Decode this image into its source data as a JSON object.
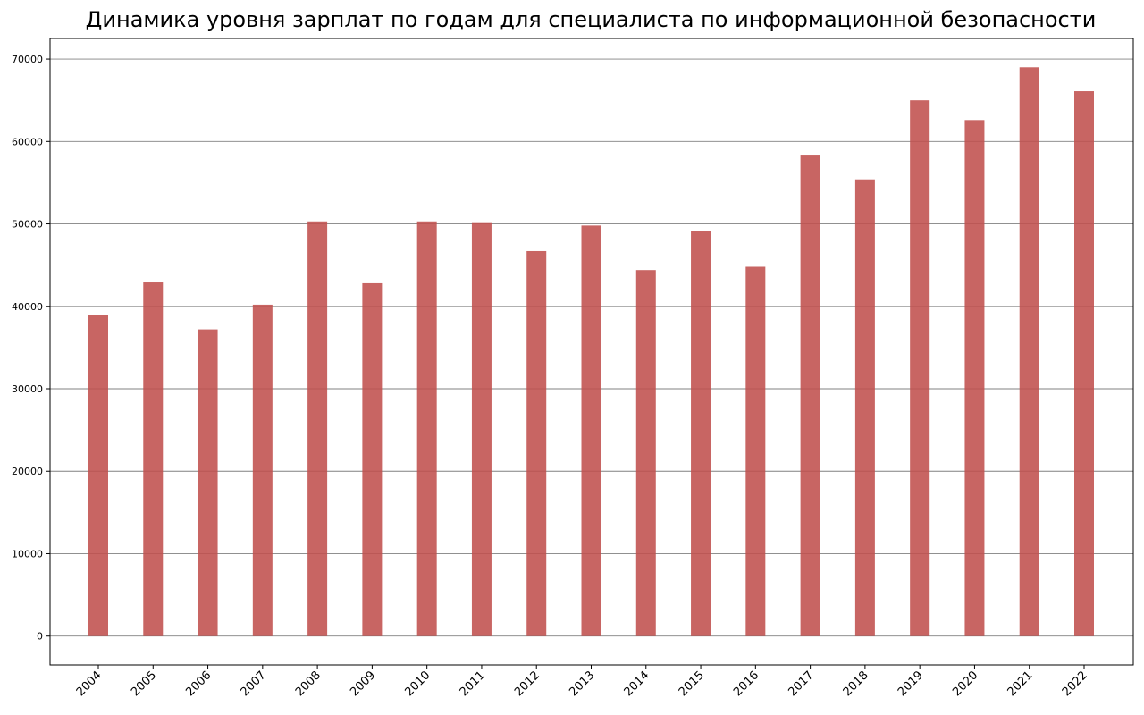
{
  "chart_data": {
    "type": "bar",
    "title": "Динамика уровня зарплат по годам для специалиста по информационной безопасности",
    "xlabel": "",
    "ylabel": "",
    "categories": [
      "2004",
      "2005",
      "2006",
      "2007",
      "2008",
      "2009",
      "2010",
      "2011",
      "2012",
      "2013",
      "2014",
      "2015",
      "2016",
      "2017",
      "2018",
      "2019",
      "2020",
      "2021",
      "2022"
    ],
    "values": [
      38900,
      42900,
      37200,
      40200,
      50300,
      42800,
      50300,
      50200,
      46700,
      49800,
      44400,
      49100,
      44800,
      58400,
      55400,
      65000,
      62600,
      69000,
      66100
    ],
    "yticks": [
      "0",
      "10000",
      "20000",
      "30000",
      "40000",
      "50000",
      "60000",
      "70000"
    ],
    "ylim": [
      -3500,
      72500
    ],
    "bar_color": "#c0504d",
    "grid": "horizontal",
    "x_tick_rotation": "45",
    "legend": "none"
  }
}
